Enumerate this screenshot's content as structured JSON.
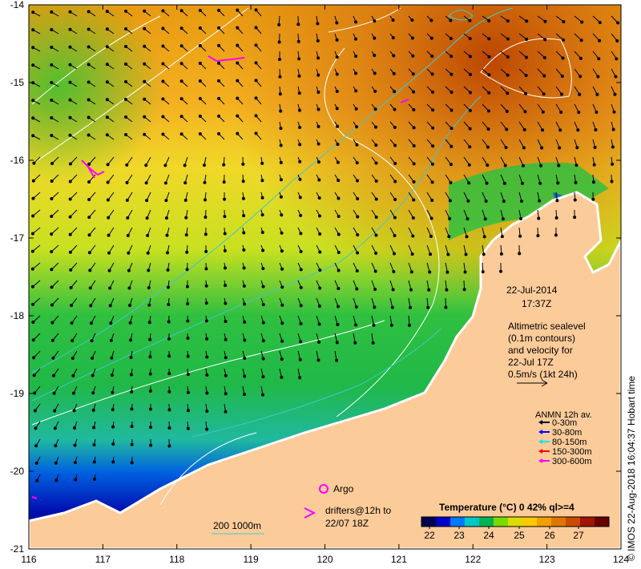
{
  "map": {
    "lon_range": [
      116,
      124
    ],
    "lat_range": [
      -21,
      -14
    ],
    "x_ticks": [
      "116",
      "117",
      "118",
      "119",
      "120",
      "121",
      "122",
      "123",
      "124"
    ],
    "y_ticks": [
      "-14",
      "-15",
      "-16",
      "-17",
      "-18",
      "-19",
      "-20",
      "-21"
    ]
  },
  "annotations": {
    "date": "22-Jul-2014",
    "time": "17:37Z",
    "alt_lines": [
      "Altimetric sealevel",
      "(0.1m contours)",
      "and velocity for",
      "22-Jul 17Z",
      "0.5m/s (1kt 24h)"
    ],
    "credit": "© IMOS 22-Aug-2018 16:04:37 Hobart time"
  },
  "anmn_legend": {
    "title": "ANMN 12h av.",
    "items": [
      {
        "label": "0-30m",
        "color": "#000000"
      },
      {
        "label": "30-80m",
        "color": "#0000ff"
      },
      {
        "label": "80-150m",
        "color": "#00e5e5"
      },
      {
        "label": "150-300m",
        "color": "#ff0000"
      },
      {
        "label": "300-600m",
        "color": "#ff00ff"
      }
    ]
  },
  "markers": {
    "argo_label": "Argo",
    "drifters_lines": [
      "drifters@12h to",
      "22/07 18Z"
    ],
    "bathy_label": "200  1000m",
    "argo_color": "#ff00ff",
    "drifter_color": "#ff00ff",
    "bathy_color": "#40c8c8"
  },
  "colorbar": {
    "title": "Temperature (°C) 0 42% ql>=4",
    "ticks": [
      "22",
      "23",
      "24",
      "25",
      "26",
      "27"
    ],
    "colors": [
      "#000050",
      "#0000c8",
      "#0078ff",
      "#00c8c8",
      "#00b450",
      "#78dc00",
      "#dcdc00",
      "#ffc800",
      "#f0a000",
      "#dc7800",
      "#c84b00",
      "#a01400",
      "#640000"
    ]
  },
  "colors": {
    "land": "#fccb9a",
    "contour": "#ffffff"
  }
}
